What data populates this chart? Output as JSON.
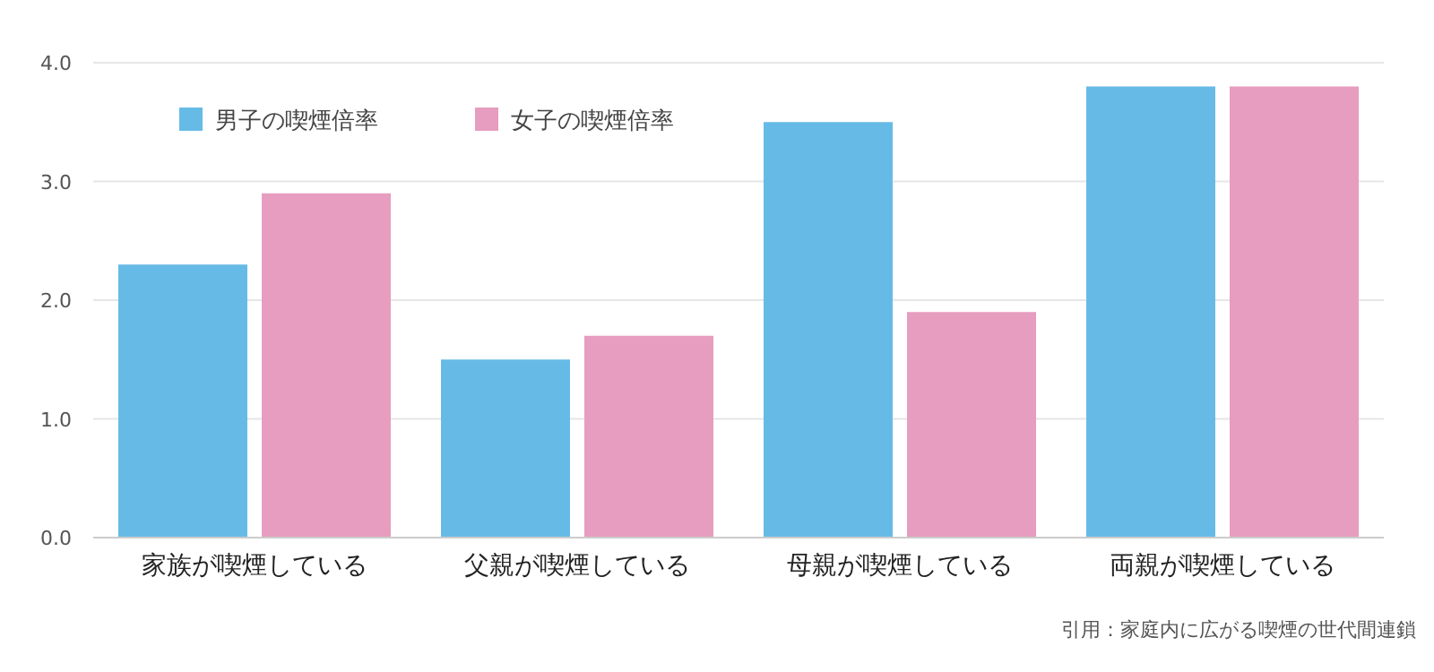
{
  "chart_data": {
    "type": "bar",
    "categories": [
      "家族が喫煙している",
      "父親が喫煙している",
      "母親が喫煙している",
      "両親が喫煙している"
    ],
    "series": [
      {
        "name": "男子の喫煙倍率",
        "color": "#66bbe6",
        "values": [
          2.3,
          1.5,
          3.5,
          3.8
        ]
      },
      {
        "name": "女子の喫煙倍率",
        "color": "#e79dbf",
        "values": [
          2.9,
          1.7,
          1.9,
          3.8
        ]
      }
    ],
    "ylim": [
      0,
      4
    ],
    "yticks": [
      {
        "value": 0,
        "label": "0.0"
      },
      {
        "value": 1,
        "label": "1.0"
      },
      {
        "value": 2,
        "label": "2.0"
      },
      {
        "value": 3,
        "label": "3.0"
      },
      {
        "value": 4,
        "label": "4.0"
      }
    ],
    "grid": "y",
    "legend": "top left",
    "annotations": [
      "引用：家庭内に広がる喫煙の世代間連鎖"
    ]
  }
}
